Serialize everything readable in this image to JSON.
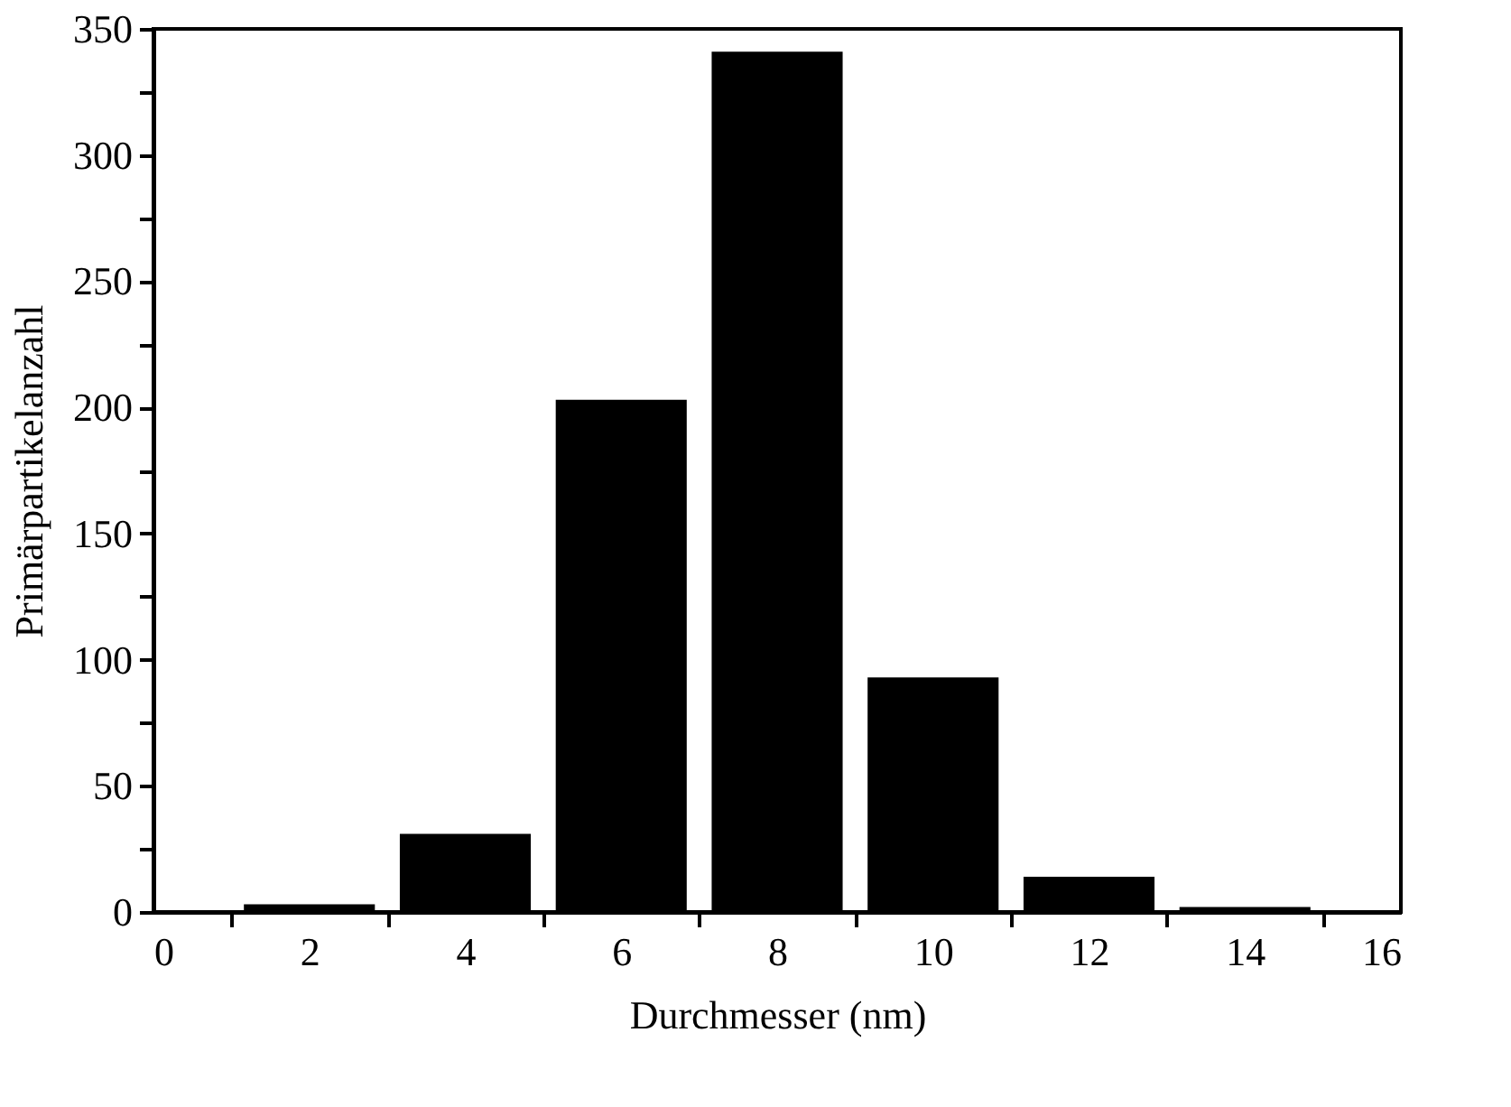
{
  "chart_data": {
    "type": "bar",
    "xlabel": "Durchmesser (nm)",
    "ylabel": "Primärpartikelanzahl",
    "x": [
      2,
      4,
      6,
      8,
      10,
      12,
      14
    ],
    "values": [
      3,
      31,
      203,
      341,
      93,
      14,
      2
    ],
    "color": "#000000",
    "xlim": [
      0,
      16
    ],
    "xticks": [
      0,
      {
        "value": 1,
        "label": null
      },
      2,
      {
        "value": 3,
        "label": null
      },
      4,
      {
        "value": 5,
        "label": null
      },
      6,
      {
        "value": 7,
        "label": null
      },
      8,
      {
        "value": 9,
        "label": null
      },
      10,
      {
        "value": 11,
        "label": null
      },
      12,
      {
        "value": 13,
        "label": null
      },
      14,
      {
        "value": 15,
        "label": null
      },
      16
    ],
    "ylim": [
      0,
      350
    ],
    "yticks": [
      0,
      {
        "value": 25,
        "label": null
      },
      50,
      {
        "value": 75,
        "label": null
      },
      100,
      {
        "value": 125,
        "label": null
      },
      150,
      {
        "value": 175,
        "label": null
      },
      200,
      {
        "value": 225,
        "label": null
      },
      250,
      {
        "value": 275,
        "label": null
      },
      300,
      {
        "value": 325,
        "label": null
      },
      350
    ],
    "grid": false
  }
}
